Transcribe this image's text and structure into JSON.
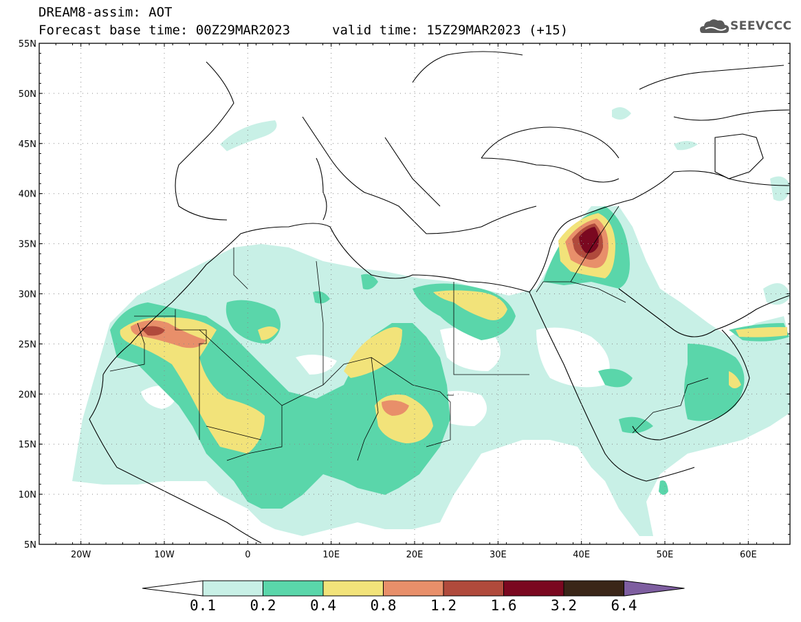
{
  "header": {
    "title_line1": "DREAM8-assim: AOT",
    "base_time_text": "Forecast base time: 00Z29MAR2023",
    "valid_time_text": "valid time: 15Z29MAR2023 (+15)"
  },
  "logo": {
    "text": "SEEVCCC",
    "icon": "cloud-icon"
  },
  "axes": {
    "lat_labels": [
      "55N",
      "50N",
      "45N",
      "40N",
      "35N",
      "30N",
      "25N",
      "20N",
      "15N",
      "10N",
      "5N"
    ],
    "lon_labels": [
      "20W",
      "10W",
      "0",
      "10E",
      "20E",
      "30E",
      "40E",
      "50E",
      "60E"
    ],
    "lat_range": [
      5,
      55
    ],
    "lon_range": [
      -25,
      65
    ]
  },
  "legend": {
    "labels": [
      "0.1",
      "0.2",
      "0.4",
      "0.8",
      "1.2",
      "1.6",
      "3.2",
      "6.4"
    ],
    "colors": [
      "#c8f0e6",
      "#5ad6aa",
      "#f2e37a",
      "#e88f6a",
      "#b04a3c",
      "#7a0820",
      "#3a2618",
      "#7e5ea0"
    ]
  }
}
